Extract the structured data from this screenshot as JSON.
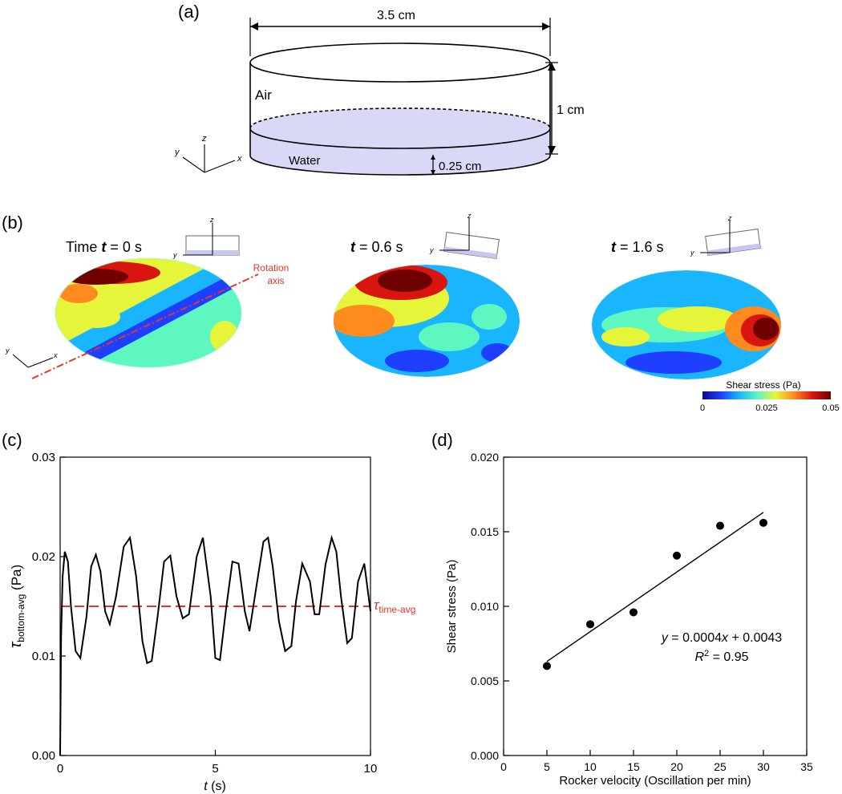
{
  "colors": {
    "water_fill": "#d9d9f7",
    "avg_line": "#e8332a",
    "rotation_axis": "#e8332a",
    "cmap": [
      "#0a0a8c",
      "#1f3fff",
      "#19b6ff",
      "#5ff7c0",
      "#e7f53a",
      "#ff8a1d",
      "#d8150f",
      "#6e0000"
    ]
  },
  "panel_a": {
    "label": "(a)",
    "width_label": "3.5 cm",
    "height_label": "1 cm",
    "air_label": "Air",
    "water_label": "Water",
    "water_depth_label": "0.25 cm",
    "axis_x": "x",
    "axis_y": "y",
    "axis_z": "z"
  },
  "panel_b": {
    "label": "(b)",
    "times": [
      {
        "prefix": "Time ",
        "var": "t",
        "suffix": " = 0 s"
      },
      {
        "prefix": "",
        "var": "t",
        "suffix": " = 0.6 s"
      },
      {
        "prefix": "",
        "var": "t",
        "suffix": " = 1.6 s"
      }
    ],
    "rotation_label_1": "Rotation",
    "rotation_label_2": "axis",
    "colorbar_title": "Shear stress (Pa)",
    "colorbar_ticks": [
      "0",
      "0.025",
      "0.05"
    ]
  },
  "chart_data": [
    {
      "panel": "(c)",
      "type": "line",
      "x_unit_label": "t",
      "xlabel_suffix": " (s)",
      "ylabel_symbol": "τ",
      "ylabel_sub": "bottom-avg",
      "ylabel_suffix": " (Pa)",
      "xlim": [
        0,
        10
      ],
      "ylim": [
        0,
        0.03
      ],
      "x_ticks": [
        "0",
        "5",
        "10"
      ],
      "y_ticks": [
        "0.00",
        "0.01",
        "0.02",
        "0.03"
      ],
      "series": [
        {
          "name": "τ bottom-avg",
          "x": [
            0,
            0.03,
            0.08,
            0.15,
            0.25,
            0.35,
            0.5,
            0.65,
            0.85,
            1.0,
            1.15,
            1.3,
            1.45,
            1.6,
            1.8,
            2.05,
            2.25,
            2.45,
            2.65,
            2.8,
            2.95,
            3.15,
            3.35,
            3.55,
            3.75,
            3.95,
            4.15,
            4.4,
            4.6,
            4.85,
            5.0,
            5.15,
            5.35,
            5.55,
            5.75,
            5.95,
            6.1,
            6.3,
            6.55,
            6.7,
            6.85,
            7.05,
            7.25,
            7.45,
            7.6,
            7.8,
            8.05,
            8.2,
            8.35,
            8.55,
            8.75,
            8.9,
            9.05,
            9.25,
            9.4,
            9.6,
            9.8,
            10.0
          ],
          "values": [
            0.0,
            0.012,
            0.018,
            0.0205,
            0.0195,
            0.015,
            0.0105,
            0.0098,
            0.014,
            0.019,
            0.0202,
            0.0185,
            0.0145,
            0.0132,
            0.016,
            0.021,
            0.0219,
            0.018,
            0.0115,
            0.0093,
            0.0095,
            0.0142,
            0.0195,
            0.0201,
            0.016,
            0.0138,
            0.0142,
            0.02,
            0.0219,
            0.016,
            0.0098,
            0.0096,
            0.0148,
            0.0195,
            0.0193,
            0.0145,
            0.0125,
            0.0165,
            0.0215,
            0.0219,
            0.019,
            0.0135,
            0.0105,
            0.011,
            0.0155,
            0.0193,
            0.0175,
            0.0142,
            0.0142,
            0.0192,
            0.0219,
            0.0205,
            0.016,
            0.0113,
            0.0118,
            0.0175,
            0.0193,
            0.0145
          ]
        }
      ],
      "reference_line": {
        "value": 0.015,
        "symbol": "τ",
        "sub": "time-avg"
      }
    },
    {
      "panel": "(d)",
      "type": "scatter",
      "xlabel": "Rocker velocity (Oscillation per min)",
      "ylabel": "Shear stress (Pa)",
      "xlim": [
        0,
        35
      ],
      "ylim": [
        0,
        0.02
      ],
      "x_ticks": [
        "0",
        "5",
        "10",
        "15",
        "20",
        "25",
        "30",
        "35"
      ],
      "y_ticks": [
        "0.000",
        "0.005",
        "0.010",
        "0.015",
        "0.020"
      ],
      "points": [
        {
          "x": 5,
          "y": 0.006
        },
        {
          "x": 10,
          "y": 0.0088
        },
        {
          "x": 15,
          "y": 0.0096
        },
        {
          "x": 20,
          "y": 0.0134
        },
        {
          "x": 25,
          "y": 0.0154
        },
        {
          "x": 30,
          "y": 0.0156
        }
      ],
      "fit": {
        "slope": 0.0004,
        "intercept": 0.0043,
        "x_range": [
          5,
          30
        ]
      },
      "eq_y": "y",
      "eq_mid": " = 0.0004",
      "eq_x": "x",
      "eq_end": " + 0.0043",
      "r2_var": "R",
      "r2_sup": "2",
      "r2_end": " = 0.95"
    }
  ]
}
